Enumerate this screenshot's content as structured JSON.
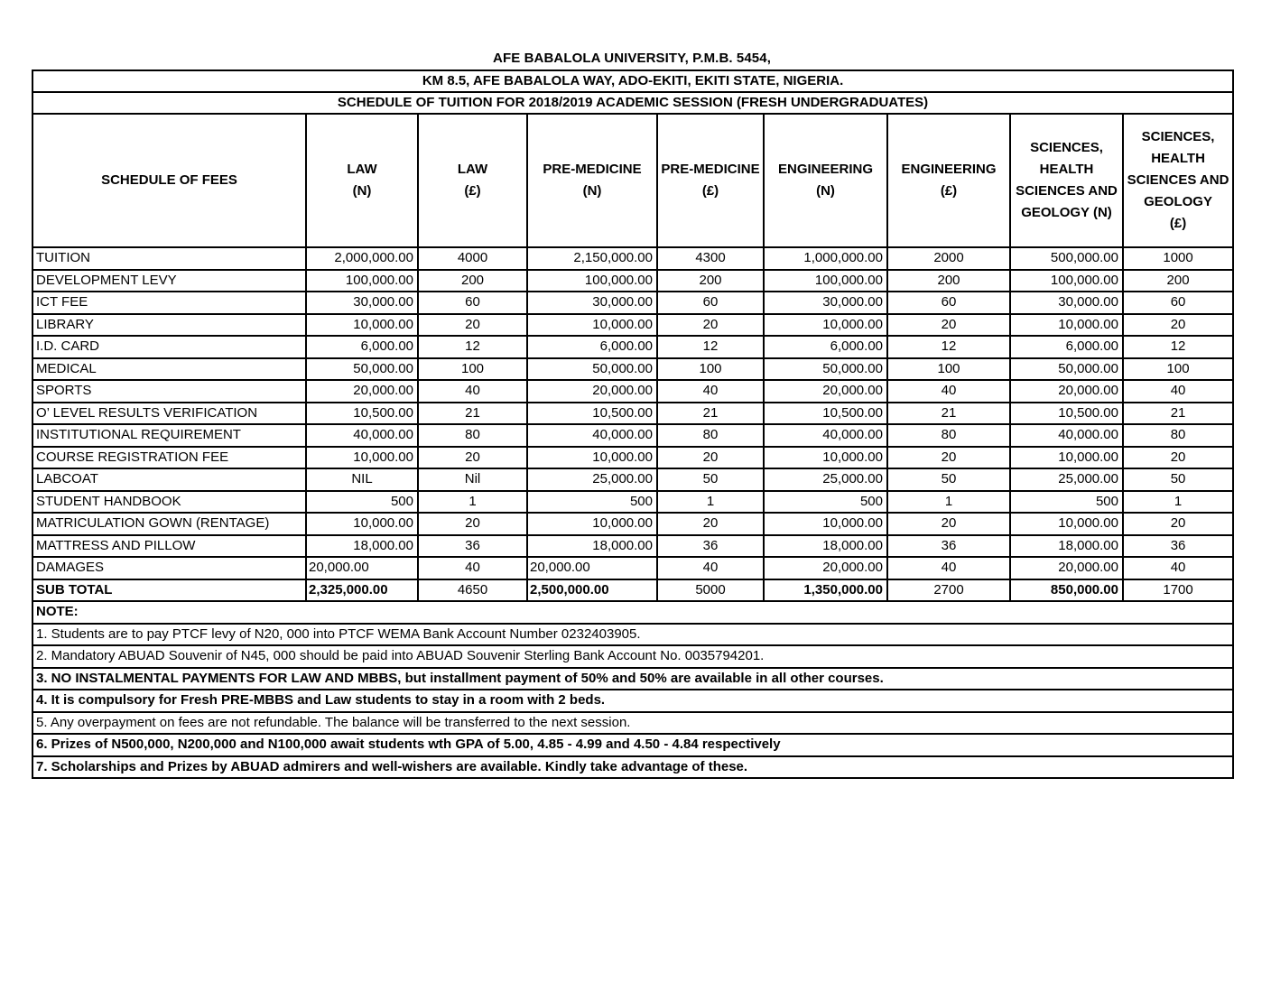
{
  "header": {
    "title": "AFE BABALOLA UNIVERSITY, P.M.B. 5454,",
    "address": "KM 8.5, AFE BABALOLA WAY, ADO-EKITI, EKITI STATE, NIGERIA.",
    "schedule_title": "SCHEDULE OF TUITION FOR 2018/2019 ACADEMIC SESSION (FRESH UNDERGRADUATES)"
  },
  "table": {
    "fees_header": "SCHEDULE OF FEES",
    "columns": [
      "LAW\n(N)",
      "LAW\n(£)",
      "PRE-MEDICINE\n(N)",
      "PRE-MEDICINE\n(£)",
      "ENGINEERING\n(N)",
      "ENGINEERING\n(£)",
      "SCIENCES,\nHEALTH\nSCIENCES AND\nGEOLOGY  (N)",
      "SCIENCES,\nHEALTH\nSCIENCES AND\nGEOLOGY\n(£)"
    ],
    "default_aligns": [
      "right",
      "center",
      "right",
      "center",
      "right",
      "center",
      "right",
      "center"
    ],
    "rows": [
      {
        "label": "TUITION",
        "values": [
          "2,000,000.00",
          "4000",
          "2,150,000.00",
          "4300",
          "1,000,000.00",
          "2000",
          "500,000.00",
          "1000"
        ]
      },
      {
        "label": "DEVELOPMENT LEVY",
        "values": [
          "100,000.00",
          "200",
          "100,000.00",
          "200",
          "100,000.00",
          "200",
          "100,000.00",
          "200"
        ]
      },
      {
        "label": "ICT FEE",
        "values": [
          "30,000.00",
          "60",
          "30,000.00",
          "60",
          "30,000.00",
          "60",
          "30,000.00",
          "60"
        ]
      },
      {
        "label": "LIBRARY",
        "values": [
          "10,000.00",
          "20",
          "10,000.00",
          "20",
          "10,000.00",
          "20",
          "10,000.00",
          "20"
        ]
      },
      {
        "label": "I.D. CARD",
        "values": [
          "6,000.00",
          "12",
          "6,000.00",
          "12",
          "6,000.00",
          "12",
          "6,000.00",
          "12"
        ]
      },
      {
        "label": "MEDICAL",
        "values": [
          "50,000.00",
          "100",
          "50,000.00",
          "100",
          "50,000.00",
          "100",
          "50,000.00",
          "100"
        ]
      },
      {
        "label": "SPORTS",
        "values": [
          "20,000.00",
          "40",
          "20,000.00",
          "40",
          "20,000.00",
          "40",
          "20,000.00",
          "40"
        ]
      },
      {
        "label": "O’ LEVEL RESULTS VERIFICATION",
        "values": [
          "10,500.00",
          "21",
          "10,500.00",
          "21",
          "10,500.00",
          "21",
          "10,500.00",
          "21"
        ]
      },
      {
        "label": "INSTITUTIONAL REQUIREMENT",
        "values": [
          "40,000.00",
          "80",
          "40,000.00",
          "80",
          "40,000.00",
          "80",
          "40,000.00",
          "80"
        ]
      },
      {
        "label": "COURSE REGISTRATION FEE",
        "values": [
          "10,000.00",
          "20",
          "10,000.00",
          "20",
          "10,000.00",
          "20",
          "10,000.00",
          "20"
        ]
      },
      {
        "label": "LABCOAT",
        "values": [
          "NIL",
          "Nil",
          "25,000.00",
          "50",
          "25,000.00",
          "50",
          "25,000.00",
          "50"
        ],
        "aligns": [
          "center",
          "center",
          "right",
          "center",
          "right",
          "center",
          "right",
          "center"
        ]
      },
      {
        "label": "STUDENT HANDBOOK",
        "values": [
          "500",
          "1",
          "500",
          "1",
          "500",
          "1",
          "500",
          "1"
        ]
      },
      {
        "label": "MATRICULATION GOWN (RENTAGE)",
        "values": [
          "10,000.00",
          "20",
          "10,000.00",
          "20",
          "10,000.00",
          "20",
          "10,000.00",
          "20"
        ]
      },
      {
        "label": "MATTRESS AND PILLOW",
        "values": [
          "18,000.00",
          "36",
          "18,000.00",
          "36",
          "18,000.00",
          "36",
          "18,000.00",
          "36"
        ]
      },
      {
        "label": "DAMAGES",
        "values": [
          "20,000.00",
          "40",
          "20,000.00",
          "40",
          "20,000.00",
          "40",
          "20,000.00",
          "40"
        ],
        "aligns": [
          "left",
          "center",
          "left",
          "center",
          "right",
          "center",
          "right",
          "center"
        ]
      },
      {
        "label": "SUB TOTAL",
        "values": [
          "2,325,000.00",
          "4650",
          "2,500,000.00",
          "5000",
          "1,350,000.00",
          "2700",
          "850,000.00",
          "1700"
        ],
        "aligns": [
          "left",
          "center",
          "left",
          "center",
          "right",
          "center",
          "right",
          "center"
        ],
        "bold_label": true,
        "bold_cols": [
          0,
          2,
          4,
          6
        ]
      }
    ]
  },
  "notes": {
    "heading": "NOTE:",
    "items": [
      {
        "text": "1. Students are to pay PTCF levy of N20, 000 into PTCF WEMA Bank Account Number 0232403905.",
        "bold": false
      },
      {
        "text": "2. Mandatory ABUAD Souvenir of N45, 000 should be paid into ABUAD Souvenir Sterling Bank Account No. 0035794201.",
        "bold": false
      },
      {
        "text": "3. NO INSTALMENTAL PAYMENTS FOR LAW AND MBBS, but installment payment of 50% and 50% are available in all other courses.",
        "bold": true
      },
      {
        "text": "4. It is compulsory for Fresh PRE-MBBS and Law students to stay in a room with 2 beds.",
        "bold": true
      },
      {
        "text": "5. Any overpayment on fees are not refundable. The balance will be transferred to the next session.",
        "bold": false
      },
      {
        "text": "6. Prizes of N500,000, N200,000 and N100,000 await students wth GPA of 5.00, 4.85 - 4.99 and 4.50 - 4.84  respectively",
        "bold": true
      },
      {
        "text": "7. Scholarships and Prizes by ABUAD admirers and well-wishers are available. Kindly take advantage of these.",
        "bold": true
      }
    ]
  }
}
